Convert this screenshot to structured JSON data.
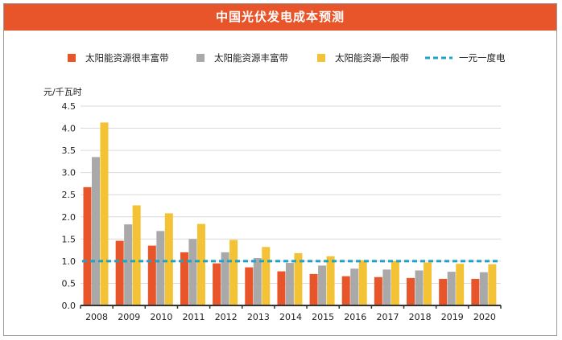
{
  "title": "中国光伏发电成本预测",
  "colors": {
    "banner": "#e8552a",
    "very_rich": "#e8552a",
    "rich": "#a9a9a9",
    "general": "#f3c335",
    "reference_line": "#1fa1c8"
  },
  "chart_data": {
    "type": "bar",
    "title": "中国光伏发电成本预测",
    "ylabel": "元/千瓦时",
    "xlabel": "",
    "ylim": [
      0,
      4.5
    ],
    "yticks": [
      "0.0",
      "0.5",
      "1.0",
      "1.5",
      "2.0",
      "2.5",
      "3.0",
      "3.5",
      "4.0",
      "4.5"
    ],
    "grid": true,
    "legend_position": "top",
    "categories": [
      "2008",
      "2009",
      "2010",
      "2011",
      "2012",
      "2013",
      "2014",
      "2015",
      "2016",
      "2017",
      "2018",
      "2019",
      "2020"
    ],
    "series": [
      {
        "name": "太阳能资源很丰富带",
        "color": "#e8552a",
        "values": [
          2.67,
          1.46,
          1.35,
          1.2,
          0.95,
          0.86,
          0.77,
          0.71,
          0.66,
          0.64,
          0.62,
          0.6,
          0.6
        ]
      },
      {
        "name": "太阳能资源丰富带",
        "color": "#a9a9a9",
        "values": [
          3.35,
          1.83,
          1.68,
          1.5,
          1.2,
          1.07,
          0.96,
          0.9,
          0.83,
          0.81,
          0.79,
          0.76,
          0.75
        ]
      },
      {
        "name": "太阳能资源一般带",
        "color": "#f3c335",
        "values": [
          4.13,
          2.26,
          2.08,
          1.84,
          1.48,
          1.32,
          1.18,
          1.11,
          1.02,
          1.0,
          0.97,
          0.94,
          0.93
        ]
      }
    ],
    "reference_line": {
      "name": "一元一度电",
      "value": 1.0,
      "color": "#1fa1c8"
    }
  }
}
